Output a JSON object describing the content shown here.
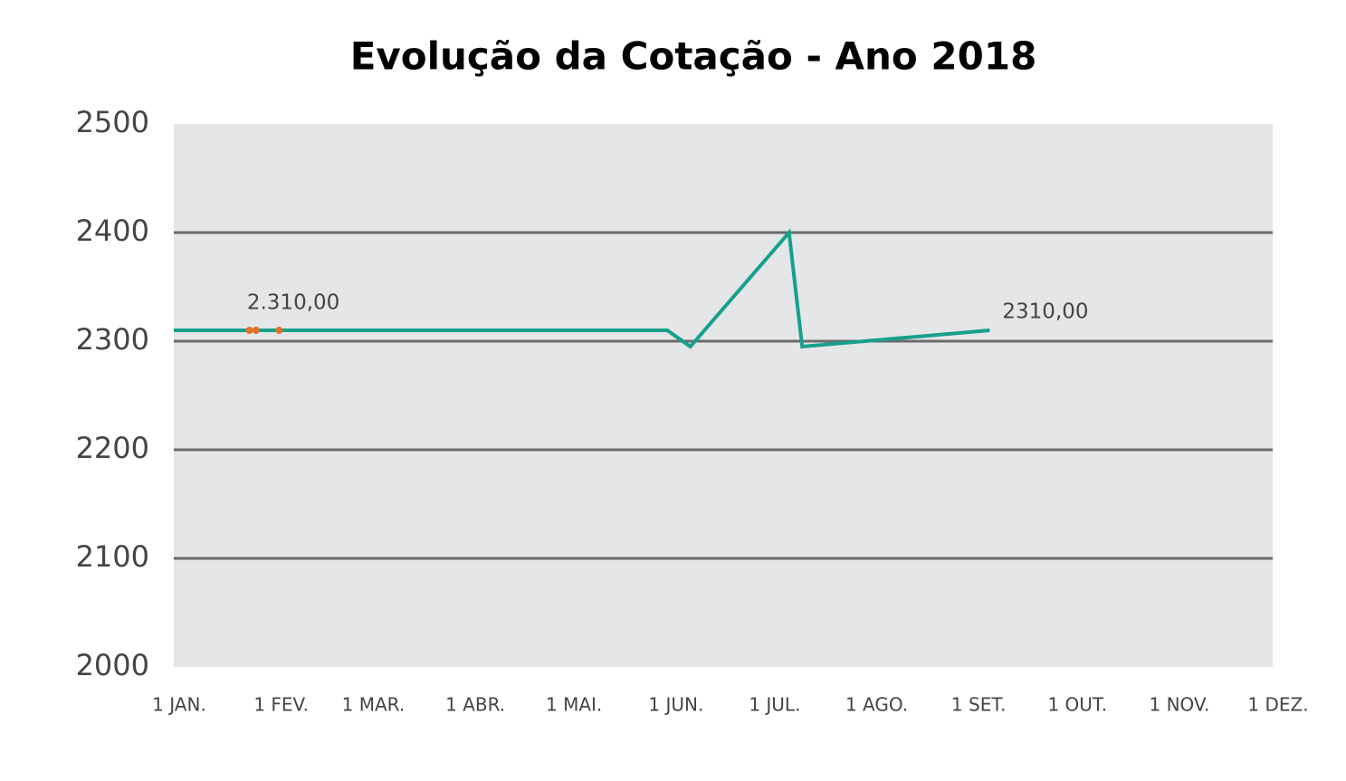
{
  "chart_data": {
    "type": "line",
    "title": "Evolução da Cotação - Ano 2018",
    "xlim": [
      0,
      334
    ],
    "xticks": [
      {
        "value": 0,
        "label": "1 JAN."
      },
      {
        "value": 31,
        "label": "1 FEV."
      },
      {
        "value": 59,
        "label": "1 MAR."
      },
      {
        "value": 90,
        "label": "1 ABR."
      },
      {
        "value": 120,
        "label": "1 MAI."
      },
      {
        "value": 151,
        "label": "1 JUN."
      },
      {
        "value": 181,
        "label": "1 JUL."
      },
      {
        "value": 212,
        "label": "1 AGO."
      },
      {
        "value": 243,
        "label": "1 SET."
      },
      {
        "value": 273,
        "label": "1 OUT."
      },
      {
        "value": 304,
        "label": "1 NOV."
      },
      {
        "value": 334,
        "label": "1 DEZ."
      }
    ],
    "ylim": [
      2000,
      2500
    ],
    "yticks": [
      2000,
      2100,
      2200,
      2300,
      2400,
      2500
    ],
    "grid": true,
    "series": [
      {
        "color": "#16a08c",
        "x": [
          0,
          150,
          157,
          187,
          191,
          248
        ],
        "values": [
          2310,
          2310,
          2295,
          2400,
          2295,
          2310
        ],
        "value_labels": [
          null,
          null,
          null,
          null,
          null,
          "2310,00"
        ]
      },
      {
        "color": "#e0702a",
        "markers": true,
        "x": [
          23,
          25,
          32
        ],
        "values": [
          2310,
          2310,
          2310
        ],
        "value_labels": [
          null,
          "2.310,00",
          null
        ]
      }
    ]
  }
}
